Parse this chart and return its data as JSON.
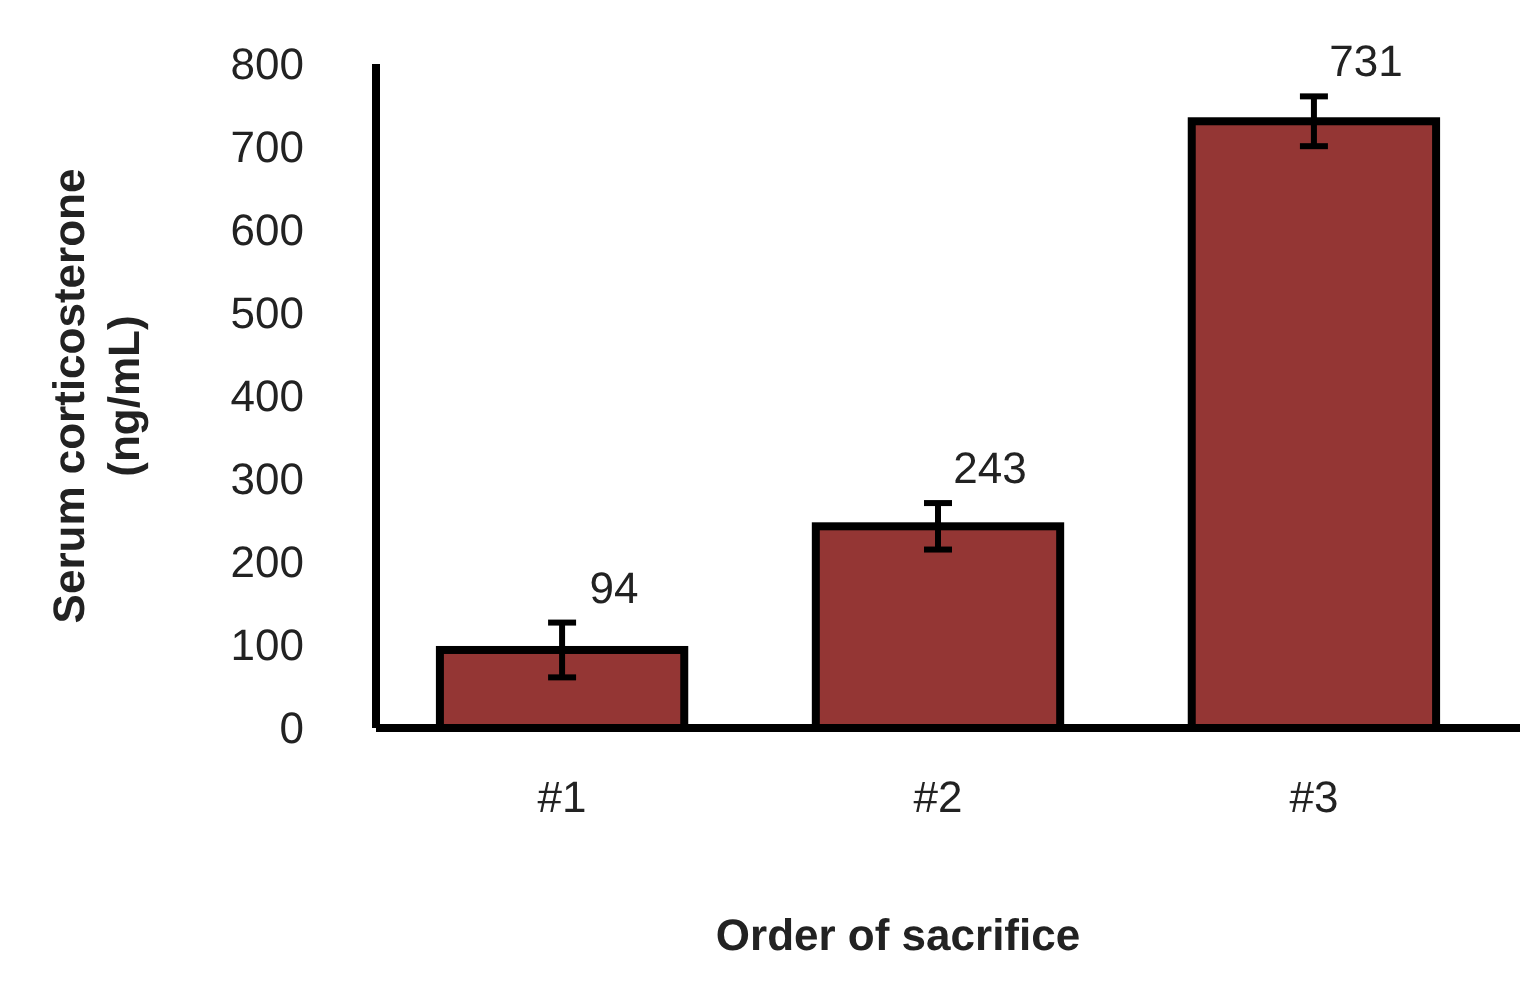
{
  "chart_data": {
    "type": "bar",
    "xlabel": "Order of sacrifice",
    "ylabel": "Serum corticosterone (ng/mL)",
    "categories": [
      "#1",
      "#2",
      "#3"
    ],
    "values": [
      94,
      243,
      731
    ],
    "errors": [
      33,
      28,
      30
    ],
    "color": "#943634",
    "ylim": [
      0,
      800
    ],
    "yticks": [
      0,
      100,
      200,
      300,
      400,
      500,
      600,
      700,
      800
    ],
    "grid": false,
    "data_labels": true
  }
}
